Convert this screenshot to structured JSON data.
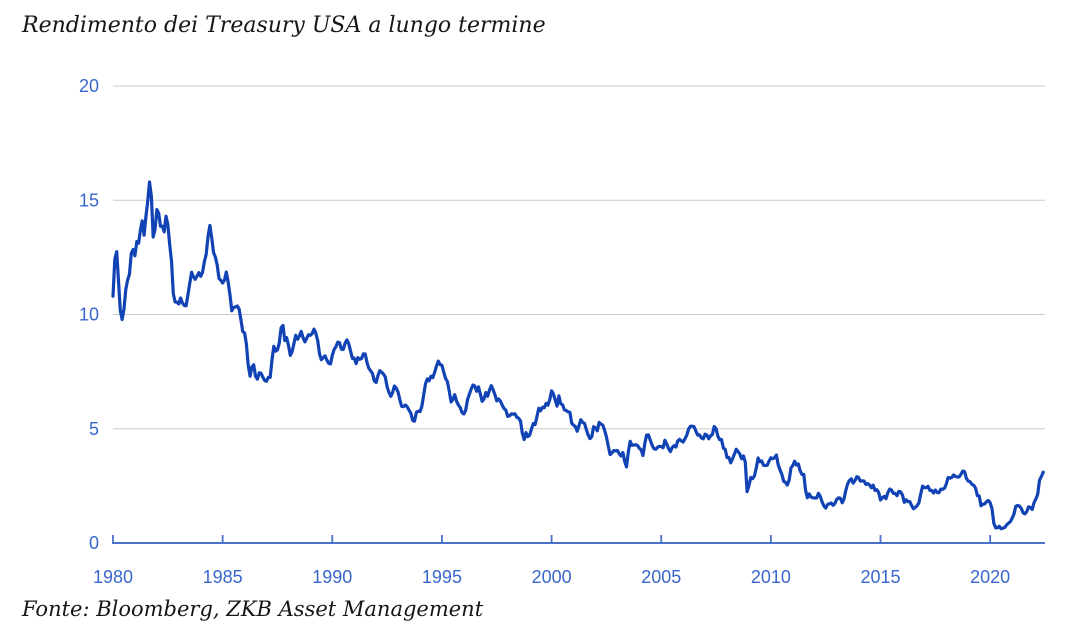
{
  "chart_data": {
    "type": "line",
    "title": "Rendimento dei Treasury USA a lungo termine",
    "source": "Fonte: Bloomberg, ZKB Asset Management",
    "series_name": "Rendimento Treasury USA a lungo termine",
    "unit": "percent",
    "frequency": "monthly",
    "x_start_year": 1980,
    "x_start_month": 1,
    "xlim": [
      1980,
      2022.5
    ],
    "ylim": [
      0,
      20
    ],
    "y_ticks": [
      0,
      5,
      10,
      15,
      20
    ],
    "x_ticks": [
      1980,
      1985,
      1990,
      1995,
      2000,
      2005,
      2010,
      2015,
      2020
    ],
    "grid": "horizontal",
    "legend": "none",
    "colors": {
      "line": "#1243b5",
      "axis": "#4a71c8",
      "tick_label": "#3a67cd",
      "gridline": "#cccccc",
      "text": "#161616",
      "background": "#ffffff"
    },
    "values": [
      10.8,
      12.41,
      12.75,
      11.47,
      10.18,
      9.78,
      10.25,
      11.1,
      11.51,
      11.75,
      12.68,
      12.84,
      12.57,
      13.19,
      13.12,
      13.68,
      14.1,
      13.47,
      14.28,
      14.94,
      15.8,
      15.15,
      13.39,
      13.72,
      14.59,
      14.43,
      13.86,
      13.87,
      13.62,
      14.3,
      13.95,
      13.06,
      12.34,
      10.91,
      10.55,
      10.54,
      10.46,
      10.72,
      10.51,
      10.4,
      10.38,
      10.85,
      11.38,
      11.85,
      11.65,
      11.54,
      11.69,
      11.83,
      11.67,
      11.84,
      12.32,
      12.63,
      13.41,
      13.9,
      13.36,
      12.72,
      12.52,
      12.16,
      11.57,
      11.5,
      11.38,
      11.51,
      11.86,
      11.43,
      10.85,
      10.16,
      10.31,
      10.33,
      10.37,
      10.24,
      9.78,
      9.26,
      9.19,
      8.7,
      7.78,
      7.3,
      7.71,
      7.8,
      7.3,
      7.17,
      7.45,
      7.43,
      7.25,
      7.11,
      7.08,
      7.25,
      7.25,
      8.02,
      8.61,
      8.4,
      8.45,
      8.76,
      9.42,
      9.52,
      8.86,
      8.99,
      8.67,
      8.21,
      8.37,
      8.72,
      9.09,
      8.92,
      9.06,
      9.26,
      8.98,
      8.8,
      8.96,
      9.11,
      9.09,
      9.17,
      9.36,
      9.18,
      8.86,
      8.28,
      8.02,
      8.11,
      8.19,
      8.01,
      7.87,
      7.84,
      8.21,
      8.47,
      8.59,
      8.79,
      8.76,
      8.48,
      8.47,
      8.75,
      8.89,
      8.72,
      8.39,
      8.08,
      8.09,
      7.85,
      8.11,
      8.04,
      8.07,
      8.28,
      8.27,
      7.9,
      7.65,
      7.53,
      7.42,
      7.09,
      7.03,
      7.34,
      7.54,
      7.48,
      7.39,
      7.26,
      6.84,
      6.59,
      6.42,
      6.59,
      6.87,
      6.77,
      6.6,
      6.26,
      5.98,
      5.97,
      6.04,
      5.96,
      5.81,
      5.68,
      5.36,
      5.33,
      5.72,
      5.77,
      5.75,
      5.97,
      6.48,
      6.97,
      7.18,
      7.1,
      7.3,
      7.24,
      7.46,
      7.74,
      7.96,
      7.81,
      7.78,
      7.47,
      7.2,
      7.06,
      6.63,
      6.17,
      6.28,
      6.49,
      6.2,
      6.04,
      5.93,
      5.71,
      5.65,
      5.81,
      6.27,
      6.51,
      6.74,
      6.91,
      6.87,
      6.64,
      6.83,
      6.53,
      6.2,
      6.3,
      6.58,
      6.42,
      6.69,
      6.89,
      6.71,
      6.49,
      6.22,
      6.3,
      6.21,
      6.03,
      5.88,
      5.81,
      5.54,
      5.57,
      5.65,
      5.64,
      5.65,
      5.5,
      5.46,
      5.34,
      4.81,
      4.53,
      4.83,
      4.65,
      4.72,
      5.0,
      5.23,
      5.18,
      5.54,
      5.9,
      5.79,
      5.94,
      5.92,
      6.11,
      6.03,
      6.28,
      6.66,
      6.52,
      6.26,
      5.99,
      6.44,
      6.1,
      6.05,
      5.83,
      5.8,
      5.74,
      5.72,
      5.24,
      5.16,
      5.1,
      4.89,
      5.14,
      5.39,
      5.28,
      5.24,
      4.97,
      4.73,
      4.57,
      4.65,
      5.09,
      5.04,
      4.91,
      5.28,
      5.21,
      5.16,
      4.93,
      4.65,
      4.26,
      3.87,
      3.94,
      4.05,
      4.03,
      4.05,
      3.9,
      3.81,
      3.96,
      3.57,
      3.33,
      3.98,
      4.45,
      4.27,
      4.29,
      4.3,
      4.27,
      4.15,
      4.08,
      3.83,
      4.35,
      4.72,
      4.73,
      4.5,
      4.28,
      4.13,
      4.1,
      4.19,
      4.23,
      4.22,
      4.17,
      4.5,
      4.34,
      4.14,
      4.0,
      4.18,
      4.26,
      4.2,
      4.46,
      4.54,
      4.47,
      4.42,
      4.57,
      4.72,
      4.99,
      5.11,
      5.11,
      5.09,
      4.88,
      4.72,
      4.73,
      4.6,
      4.56,
      4.76,
      4.72,
      4.56,
      4.69,
      4.75,
      5.1,
      5.0,
      4.67,
      4.52,
      4.53,
      4.15,
      4.1,
      3.74,
      3.74,
      3.51,
      3.68,
      3.88,
      4.1,
      4.01,
      3.89,
      3.69,
      3.81,
      3.53,
      2.25,
      2.52,
      2.87,
      2.82,
      2.93,
      3.29,
      3.72,
      3.56,
      3.59,
      3.4,
      3.39,
      3.4,
      3.59,
      3.73,
      3.69,
      3.73,
      3.85,
      3.42,
      3.2,
      3.01,
      2.7,
      2.65,
      2.54,
      2.76,
      3.29,
      3.39,
      3.58,
      3.41,
      3.46,
      3.17,
      3.0,
      3.0,
      2.3,
      1.98,
      2.15,
      2.01,
      1.98,
      1.97,
      1.97,
      2.17,
      2.05,
      1.8,
      1.62,
      1.53,
      1.68,
      1.72,
      1.75,
      1.65,
      1.72,
      1.91,
      1.98,
      1.96,
      1.76,
      1.93,
      2.3,
      2.58,
      2.74,
      2.81,
      2.62,
      2.72,
      2.9,
      2.86,
      2.71,
      2.72,
      2.71,
      2.56,
      2.6,
      2.54,
      2.42,
      2.53,
      2.3,
      2.33,
      2.21,
      1.88,
      1.98,
      2.04,
      1.94,
      2.2,
      2.36,
      2.32,
      2.17,
      2.17,
      2.07,
      2.26,
      2.24,
      2.09,
      1.78,
      1.89,
      1.81,
      1.81,
      1.64,
      1.5,
      1.56,
      1.63,
      1.76,
      2.14,
      2.49,
      2.43,
      2.42,
      2.48,
      2.3,
      2.3,
      2.19,
      2.32,
      2.21,
      2.2,
      2.36,
      2.35,
      2.4,
      2.58,
      2.86,
      2.84,
      2.87,
      2.98,
      2.91,
      2.89,
      2.89,
      3.0,
      3.15,
      3.12,
      2.83,
      2.71,
      2.68,
      2.57,
      2.53,
      2.4,
      2.07,
      2.06,
      1.63,
      1.7,
      1.71,
      1.81,
      1.86,
      1.76,
      1.5,
      0.87,
      0.66,
      0.67,
      0.73,
      0.62,
      0.65,
      0.68,
      0.79,
      0.87,
      0.93,
      1.08,
      1.26,
      1.61,
      1.64,
      1.62,
      1.52,
      1.32,
      1.28,
      1.37,
      1.58,
      1.56,
      1.47,
      1.76,
      1.93,
      2.13,
      2.75,
      2.9,
      3.1
    ]
  }
}
